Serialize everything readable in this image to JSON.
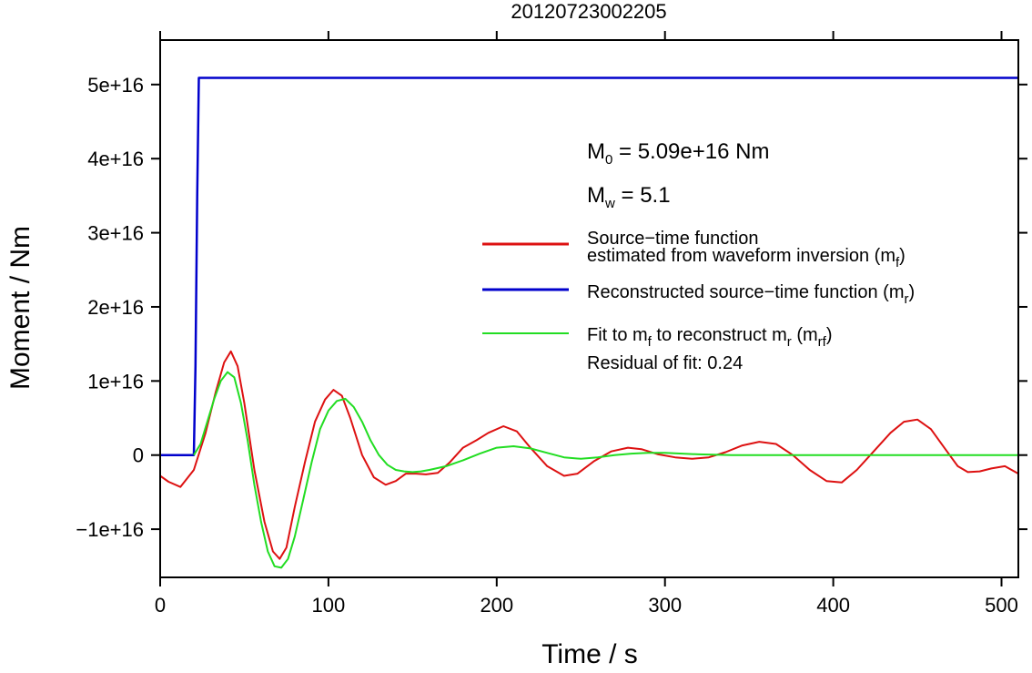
{
  "chart_data": {
    "type": "line",
    "title": "20120723002205",
    "xlabel": "Time / s",
    "ylabel": "Moment / Nm",
    "xlim": [
      0,
      510
    ],
    "ylim": [
      -1.65e+16,
      5.6e+16
    ],
    "x_ticks": [
      0,
      100,
      200,
      300,
      400,
      500
    ],
    "x_tick_labels": [
      "0",
      "100",
      "200",
      "300",
      "400",
      "500"
    ],
    "y_ticks": [
      -1e+16,
      0,
      1e+16,
      2e+16,
      3e+16,
      4e+16,
      5e+16
    ],
    "y_tick_labels": [
      "−1e+16",
      "0",
      "1e+16",
      "2e+16",
      "3e+16",
      "4e+16",
      "5e+16"
    ],
    "grid": false,
    "legend_position": "right",
    "annotations": {
      "m0": {
        "base": "M",
        "sub": "0",
        "rest": " = 5.09e+16 Nm"
      },
      "mw": {
        "base": "M",
        "sub": "w",
        "rest": " = 5.1"
      },
      "residual": "Residual of fit: 0.24"
    },
    "legend": [
      {
        "color": "#dd1111",
        "lines": [
          {
            "text": "Source−time function"
          },
          {
            "text": "estimated from waveform inversion (m",
            "sub": "f",
            "tail": ")"
          }
        ]
      },
      {
        "color": "#0000cc",
        "lines": [
          {
            "text": "Reconstructed source−time function (m",
            "sub": "r",
            "tail": ")"
          }
        ]
      },
      {
        "color": "#22dd22",
        "lines": [
          {
            "text": "Fit to m",
            "sub": "f",
            "text2": " to reconstruct m",
            "sub2": "r",
            "text3": " (m",
            "sub3": "rf",
            "tail": ")"
          }
        ]
      }
    ],
    "series": [
      {
        "color": "#0000cc",
        "x": [
          0,
          20,
          21,
          22,
          23,
          510
        ],
        "y": [
          0,
          0,
          1.2e+16,
          3.5e+16,
          5.09e+16,
          5.09e+16
        ]
      },
      {
        "color": "#dd1111",
        "x": [
          0,
          5,
          12,
          20,
          27,
          33,
          38,
          42,
          46,
          50,
          56,
          62,
          67,
          71,
          75,
          80,
          86,
          92,
          98,
          103,
          108,
          113,
          120,
          127,
          134,
          140,
          146,
          152,
          158,
          165,
          172,
          180,
          188,
          195,
          204,
          212,
          220,
          230,
          240,
          248,
          258,
          268,
          278,
          286,
          296,
          306,
          316,
          326,
          336,
          346,
          356,
          366,
          376,
          386,
          396,
          405,
          414,
          424,
          434,
          442,
          450,
          458,
          466,
          474,
          480,
          487,
          494,
          502,
          510
        ],
        "y": [
          -2800000000000000.0,
          -3600000000000000.0,
          -4300000000000000.0,
          -2000000000000000.0,
          3000000000000000.0,
          8500000000000000.0,
          1.25e+16,
          1.4e+16,
          1.2e+16,
          7000000000000000.0,
          -2000000000000000.0,
          -9000000000000000.0,
          -1.3e+16,
          -1.4e+16,
          -1.25e+16,
          -7000000000000000.0,
          -1000000000000000.0,
          4500000000000000.0,
          7500000000000000.0,
          8800000000000000.0,
          8000000000000000.0,
          5000000000000000.0,
          0,
          -3000000000000000.0,
          -4000000000000000.0,
          -3500000000000000.0,
          -2500000000000000.0,
          -2500000000000000.0,
          -2600000000000000.0,
          -2400000000000000.0,
          -1000000000000000.0,
          1000000000000000.0,
          2000000000000000.0,
          3000000000000000.0,
          3900000000000000.0,
          3200000000000000.0,
          1000000000000000.0,
          -1500000000000000.0,
          -2800000000000000.0,
          -2500000000000000.0,
          -800000000000000.0,
          500000000000000.0,
          1000000000000000.0,
          800000000000000.0,
          100000000000000.0,
          -300000000000000.0,
          -500000000000000.0,
          -300000000000000.0,
          400000000000000.0,
          1300000000000000.0,
          1800000000000000.0,
          1500000000000000.0,
          0,
          -2000000000000000.0,
          -3500000000000000.0,
          -3700000000000000.0,
          -2000000000000000.0,
          500000000000000.0,
          3000000000000000.0,
          4500000000000000.0,
          4800000000000000.0,
          3500000000000000.0,
          1000000000000000.0,
          -1500000000000000.0,
          -2300000000000000.0,
          -2200000000000000.0,
          -1800000000000000.0,
          -1500000000000000.0,
          -2500000000000000.0
        ]
      },
      {
        "color": "#22dd22",
        "x": [
          20,
          24,
          28,
          32,
          36,
          40,
          44,
          48,
          52,
          56,
          60,
          64,
          68,
          72,
          76,
          80,
          85,
          90,
          95,
          100,
          105,
          110,
          115,
          120,
          125,
          130,
          135,
          140,
          145,
          150,
          155,
          160,
          170,
          180,
          190,
          200,
          210,
          220,
          230,
          240,
          250,
          260,
          270,
          280,
          290,
          300,
          320,
          340,
          360,
          380,
          400,
          450,
          510
        ],
        "y": [
          0,
          1500000000000000.0,
          4500000000000000.0,
          7500000000000000.0,
          1e+16,
          1.12e+16,
          1.05e+16,
          7000000000000000.0,
          2000000000000000.0,
          -4000000000000000.0,
          -9000000000000000.0,
          -1.3e+16,
          -1.5e+16,
          -1.52e+16,
          -1.4e+16,
          -1.1e+16,
          -6000000000000000.0,
          -1000000000000000.0,
          3500000000000000.0,
          6000000000000000.0,
          7300000000000000.0,
          7600000000000000.0,
          6500000000000000.0,
          4500000000000000.0,
          2000000000000000.0,
          0,
          -1300000000000000.0,
          -2000000000000000.0,
          -2200000000000000.0,
          -2300000000000000.0,
          -2200000000000000.0,
          -2000000000000000.0,
          -1500000000000000.0,
          -700000000000000.0,
          200000000000000.0,
          1000000000000000.0,
          1200000000000000.0,
          900000000000000.0,
          300000000000000.0,
          -300000000000000.0,
          -500000000000000.0,
          -300000000000000.0,
          0,
          200000000000000.0,
          300000000000000.0,
          300000000000000.0,
          100000000000000.0,
          0,
          0,
          0,
          0,
          0,
          0
        ]
      }
    ]
  }
}
